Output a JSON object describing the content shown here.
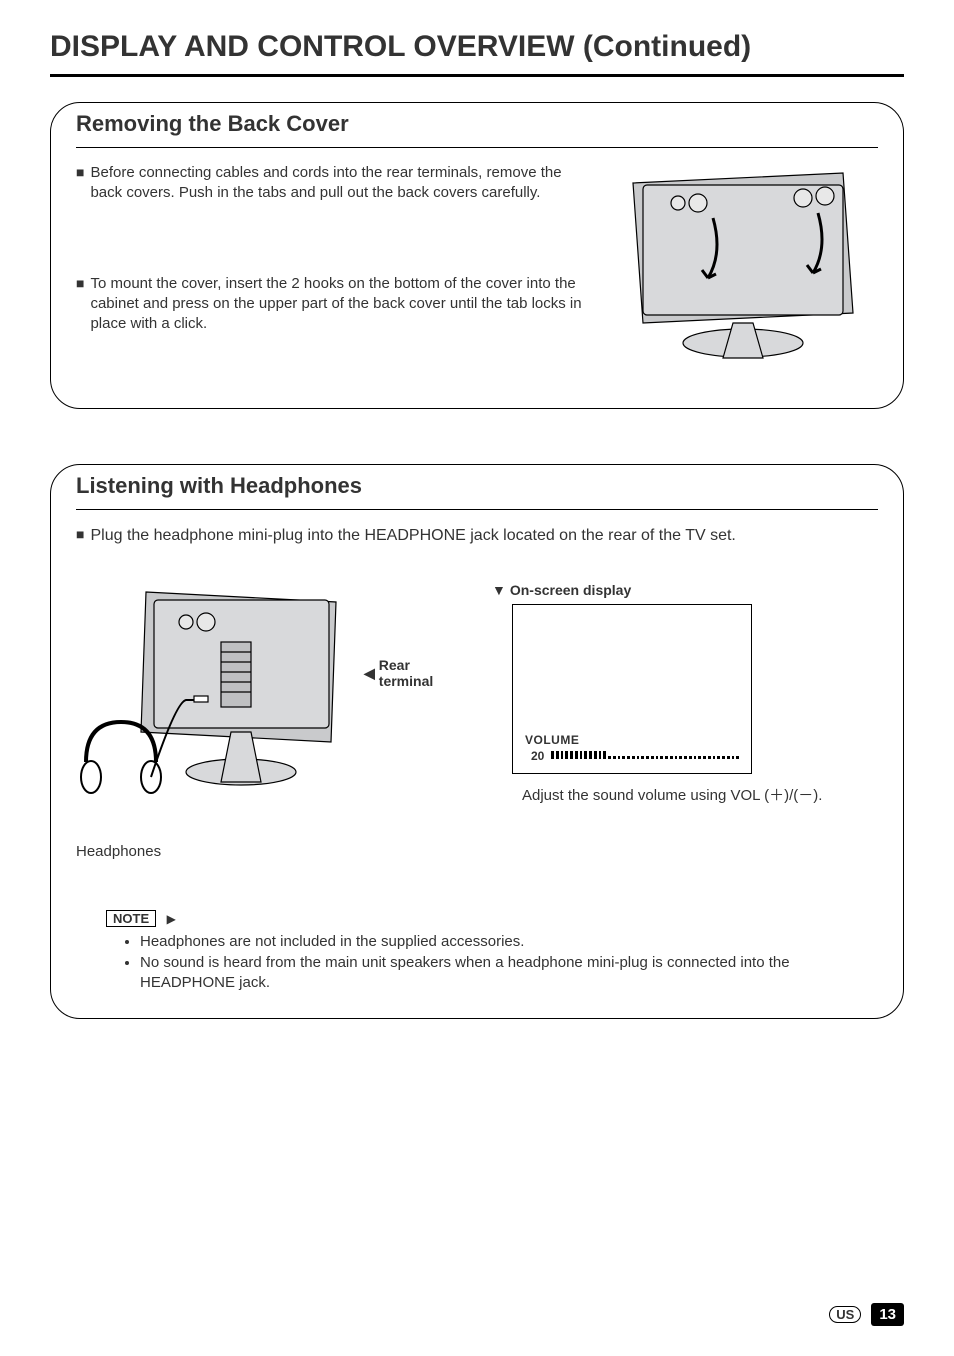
{
  "page": {
    "title": "DISPLAY AND CONTROL OVERVIEW (Continued)",
    "region_code": "US",
    "page_number": "13"
  },
  "section_back_cover": {
    "heading": "Removing the Back Cover",
    "bullets": [
      "Before connecting cables and cords into the rear terminals, remove the back covers. Push in the tabs and pull out the back covers carefully.",
      "To mount the cover, insert the 2 hooks on the bottom of the cover into the cabinet and press on the upper part of the back cover until the tab locks in place with a click."
    ],
    "illustration": {
      "name": "tv-rear-back-cover-removal-diagram",
      "fill": "#c9cacc",
      "stroke": "#000000"
    }
  },
  "section_headphones": {
    "heading": "Listening with Headphones",
    "intro": "Plug the headphone mini-plug into the HEADPHONE jack located on the rear of the TV set.",
    "left_figure": {
      "name": "tv-rear-headphone-connection-diagram",
      "rear_terminal_label": "Rear terminal",
      "headphones_label": "Headphones",
      "fill": "#c9cacc",
      "stroke": "#000000"
    },
    "osd": {
      "heading": "On-screen display",
      "volume_label": "VOLUME",
      "volume_value": "20",
      "volume_level_ticks_on": 12,
      "volume_level_ticks_off": 28,
      "caption": "Adjust the sound volume using VOL (＋)/(－)."
    },
    "note": {
      "tag": "NOTE",
      "items": [
        "Headphones are not included in the supplied accessories.",
        "No sound is heard from the main unit speakers when a headphone mini-plug is connected into the HEADPHONE jack."
      ]
    }
  },
  "style": {
    "text_color": "#333333",
    "rule_color": "#000000",
    "panel_border_color": "#000000",
    "background_color": "#ffffff"
  }
}
